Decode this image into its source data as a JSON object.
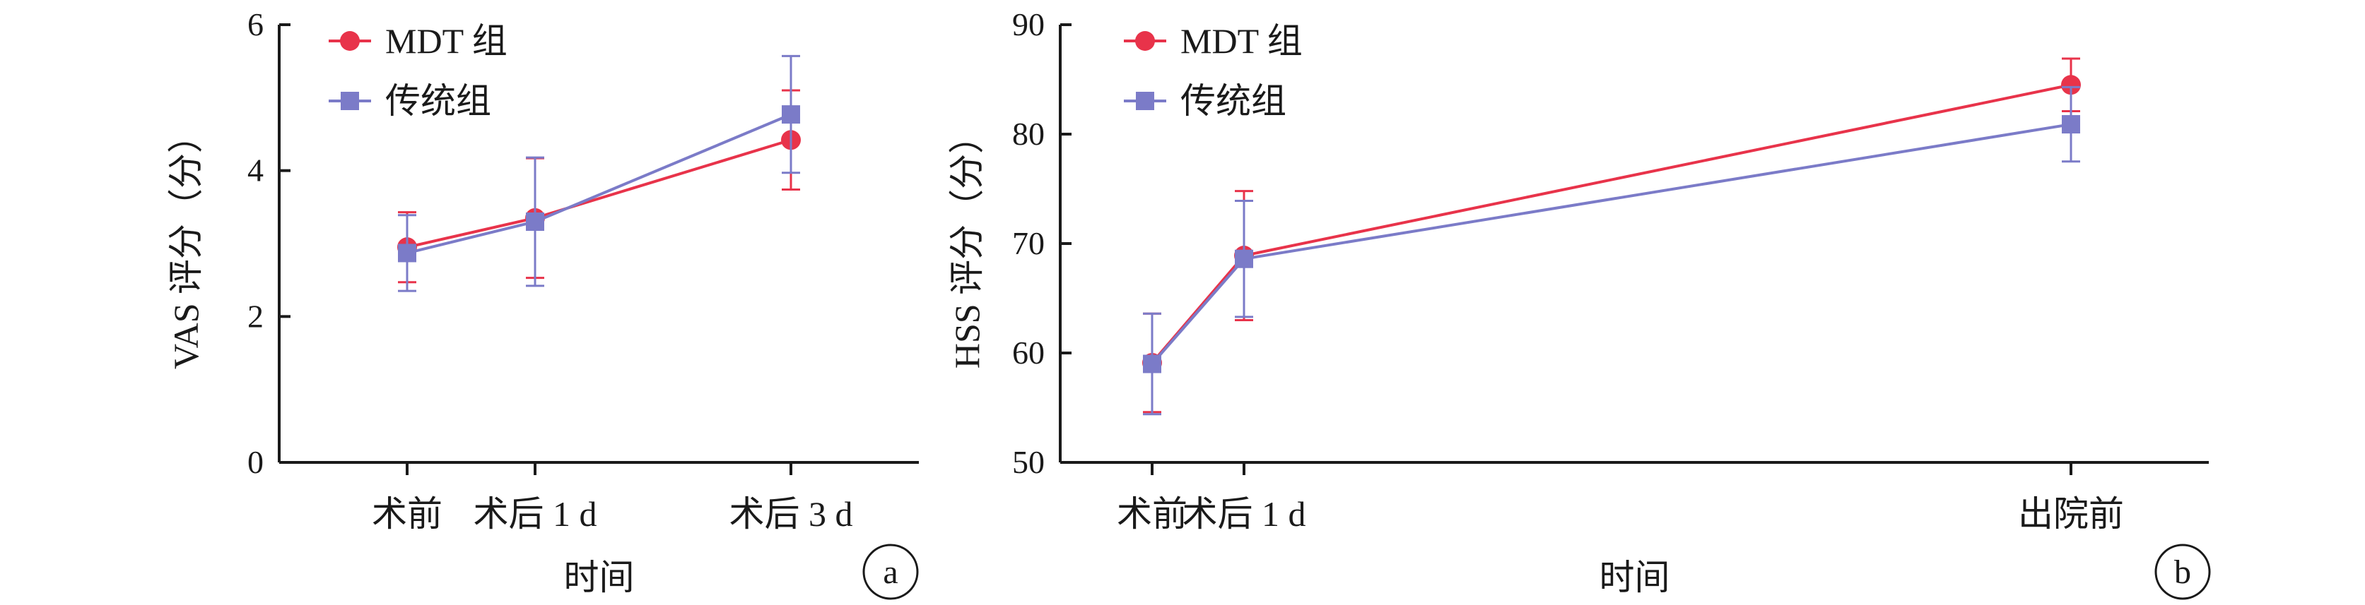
{
  "chart_data": [
    {
      "panel": "a",
      "type": "line",
      "ylabel": "VAS 评分（分）",
      "xlabel": "时间",
      "ylim": [
        0,
        6
      ],
      "yticks": [
        0,
        2,
        4,
        6
      ],
      "grid": false,
      "legend_position": "top-left",
      "categories": [
        {
          "label": "术前",
          "x": 1
        },
        {
          "label": "术后 1 d",
          "x": 2
        },
        {
          "label": "术后 3 d",
          "x": 4
        }
      ],
      "xlim": [
        0,
        5
      ],
      "series": [
        {
          "name": "MDT 组",
          "marker": "circle",
          "color": "#e8334a",
          "values": [
            2.95,
            3.35,
            4.42
          ],
          "errors": [
            0.48,
            0.82,
            0.68
          ]
        },
        {
          "name": "传统组",
          "marker": "square",
          "color": "#7b7bc8",
          "values": [
            2.87,
            3.3,
            4.77
          ],
          "errors": [
            0.52,
            0.88,
            0.8
          ]
        }
      ]
    },
    {
      "panel": "b",
      "type": "line",
      "ylabel": "HSS 评分（分）",
      "xlabel": "时间",
      "ylim": [
        50,
        90
      ],
      "yticks": [
        50,
        60,
        70,
        80,
        90
      ],
      "grid": false,
      "legend_position": "top-left",
      "categories": [
        {
          "label": "术前",
          "x": 1
        },
        {
          "label": "术后 1 d",
          "x": 2
        },
        {
          "label": "出院前",
          "x": 11
        }
      ],
      "xlim": [
        0,
        12.5
      ],
      "series": [
        {
          "name": "MDT 组",
          "marker": "circle",
          "color": "#e8334a",
          "values": [
            59.1,
            68.9,
            84.5
          ],
          "errors": [
            4.5,
            5.9,
            2.4
          ]
        },
        {
          "name": "传统组",
          "marker": "square",
          "color": "#7b7bc8",
          "values": [
            59.0,
            68.6,
            80.9
          ],
          "errors": [
            4.6,
            5.3,
            3.4
          ]
        }
      ]
    }
  ]
}
